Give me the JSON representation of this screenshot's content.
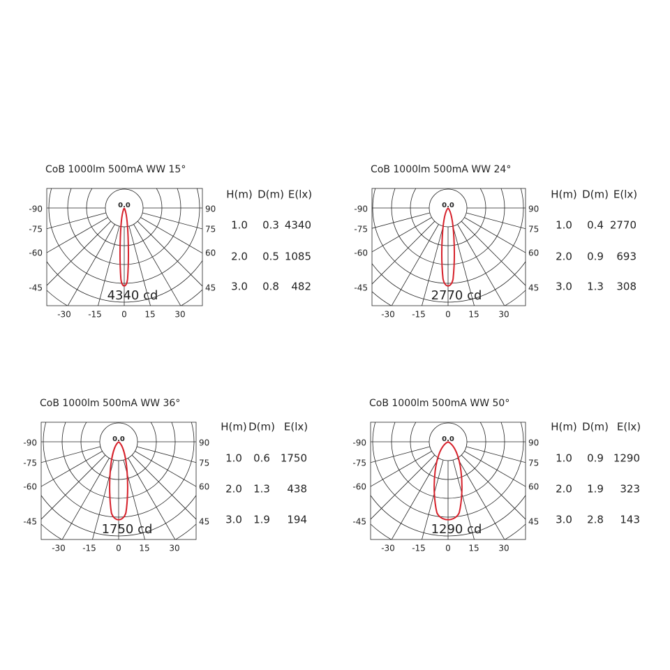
{
  "panels": [
    {
      "title": "CoB  1000lm  500mA  WW  15°",
      "headers": [
        "H(m)",
        "D(m)",
        "E(lx)"
      ],
      "rows": [
        [
          "1.0",
          "0.3",
          "4340"
        ],
        [
          "2.0",
          "0.5",
          "1085"
        ],
        [
          "3.0",
          "0.8",
          "482"
        ]
      ],
      "peak_label": "4340 cd",
      "center_label": "0.0",
      "left_labels": [
        "-90",
        "-75",
        "-60",
        "-45"
      ],
      "right_labels": [
        "90",
        "75",
        "60",
        "45"
      ],
      "bottom_labels": [
        "-30",
        "-15",
        "0",
        "15",
        "30"
      ]
    },
    {
      "title": "CoB  1000lm  500mA  WW  24°",
      "headers": [
        "H(m)",
        "D(m)",
        "E(lx)"
      ],
      "rows": [
        [
          "1.0",
          "0.4",
          "2770"
        ],
        [
          "2.0",
          "0.9",
          "693"
        ],
        [
          "3.0",
          "1.3",
          "308"
        ]
      ],
      "peak_label": "2770 cd",
      "center_label": "0.0",
      "left_labels": [
        "-90",
        "-75",
        "-60",
        "-45"
      ],
      "right_labels": [
        "90",
        "75",
        "60",
        "45"
      ],
      "bottom_labels": [
        "-30",
        "-15",
        "0",
        "15",
        "30"
      ]
    },
    {
      "title": "CoB  1000lm  500mA  WW  36°",
      "headers": [
        "H(m)",
        "D(m)",
        "E(lx)"
      ],
      "rows": [
        [
          "1.0",
          "0.6",
          "1750"
        ],
        [
          "2.0",
          "1.3",
          "438"
        ],
        [
          "3.0",
          "1.9",
          "194"
        ]
      ],
      "peak_label": "1750 cd",
      "center_label": "0.0",
      "left_labels": [
        "-90",
        "-75",
        "-60",
        "-45"
      ],
      "right_labels": [
        "90",
        "75",
        "60",
        "45"
      ],
      "bottom_labels": [
        "-30",
        "-15",
        "0",
        "15",
        "30"
      ]
    },
    {
      "title": "CoB  1000lm  500mA  WW  50°",
      "headers": [
        "H(m)",
        "D(m)",
        "E(lx)"
      ],
      "rows": [
        [
          "1.0",
          "0.9",
          "1290"
        ],
        [
          "2.0",
          "1.9",
          "323"
        ],
        [
          "3.0",
          "2.8",
          "143"
        ]
      ],
      "peak_label": "1290 cd",
      "center_label": "0.0",
      "left_labels": [
        "-90",
        "-75",
        "-60",
        "-45"
      ],
      "right_labels": [
        "90",
        "75",
        "60",
        "45"
      ],
      "bottom_labels": [
        "-30",
        "-15",
        "0",
        "15",
        "30"
      ]
    }
  ]
}
